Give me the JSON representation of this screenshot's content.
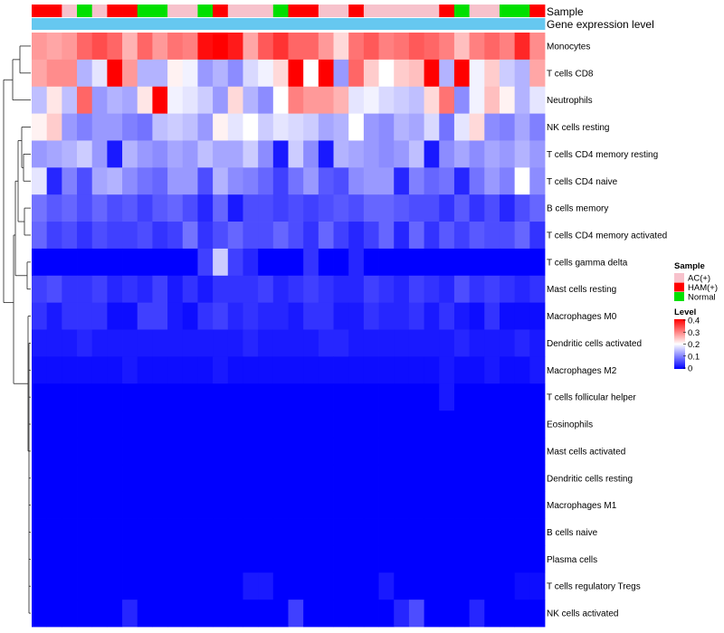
{
  "chart_data": {
    "type": "heatmap",
    "title": "",
    "annotation_labels": {
      "sample": "Sample",
      "gene_expression": "Gene expression level"
    },
    "rows": [
      "Monocytes",
      "T cells CD8",
      "Neutrophils",
      "NK cells resting",
      "T cells CD4 memory resting",
      "T cells CD4 naive",
      "B cells memory",
      "T cells CD4 memory activated",
      "T cells gamma delta",
      "Mast cells resting",
      "Macrophages M0",
      "Dendritic cells activated",
      "Macrophages M2",
      "T cells follicular helper",
      "Eosinophils",
      "Mast cells activated",
      "Dendritic cells resting",
      "Macrophages M1",
      "B cells naive",
      "Plasma cells",
      "T cells regulatory  Tregs",
      "NK cells activated"
    ],
    "samples": [
      "HAM(+)",
      "HAM(+)",
      "AC(+)",
      "Normal",
      "AC(+)",
      "HAM(+)",
      "HAM(+)",
      "Normal",
      "Normal",
      "AC(+)",
      "AC(+)",
      "Normal",
      "HAM(+)",
      "AC(+)",
      "AC(+)",
      "AC(+)",
      "Normal",
      "HAM(+)",
      "HAM(+)",
      "AC(+)",
      "AC(+)",
      "HAM(+)",
      "AC(+)",
      "AC(+)",
      "AC(+)",
      "AC(+)",
      "AC(+)",
      "HAM(+)",
      "Normal",
      "AC(+)",
      "AC(+)",
      "Normal",
      "Normal",
      "HAM(+)"
    ],
    "values": [
      [
        0.28,
        0.27,
        0.28,
        0.32,
        0.34,
        0.32,
        0.26,
        0.32,
        0.28,
        0.31,
        0.3,
        0.39,
        0.42,
        0.38,
        0.27,
        0.33,
        0.36,
        0.32,
        0.32,
        0.28,
        0.23,
        0.31,
        0.33,
        0.3,
        0.31,
        0.33,
        0.32,
        0.3,
        0.25,
        0.3,
        0.32,
        0.3,
        0.37,
        0.29
      ],
      [
        0.27,
        0.29,
        0.29,
        0.14,
        0.18,
        0.4,
        0.28,
        0.14,
        0.14,
        0.21,
        0.19,
        0.12,
        0.14,
        0.11,
        0.17,
        0.19,
        0.23,
        0.4,
        0.2,
        0.4,
        0.12,
        0.32,
        0.24,
        0.2,
        0.24,
        0.25,
        0.4,
        0.14,
        0.4,
        0.19,
        0.24,
        0.16,
        0.14,
        0.27
      ],
      [
        0.15,
        0.22,
        0.15,
        0.32,
        0.12,
        0.14,
        0.13,
        0.22,
        0.4,
        0.19,
        0.18,
        0.16,
        0.12,
        0.23,
        0.14,
        0.11,
        0.2,
        0.3,
        0.28,
        0.28,
        0.26,
        0.18,
        0.19,
        0.17,
        0.16,
        0.15,
        0.23,
        0.31,
        0.11,
        0.19,
        0.25,
        0.21,
        0.14,
        0.18
      ],
      [
        0.21,
        0.24,
        0.12,
        0.1,
        0.12,
        0.12,
        0.1,
        0.09,
        0.15,
        0.16,
        0.15,
        0.12,
        0.21,
        0.18,
        0.2,
        0.16,
        0.18,
        0.17,
        0.16,
        0.13,
        0.14,
        0.2,
        0.12,
        0.11,
        0.14,
        0.13,
        0.17,
        0.09,
        0.18,
        0.23,
        0.11,
        0.1,
        0.13,
        0.1
      ],
      [
        0.12,
        0.13,
        0.14,
        0.16,
        0.12,
        0.02,
        0.14,
        0.12,
        0.11,
        0.13,
        0.12,
        0.15,
        0.13,
        0.13,
        0.16,
        0.11,
        0.02,
        0.16,
        0.11,
        0.02,
        0.14,
        0.13,
        0.12,
        0.11,
        0.12,
        0.15,
        0.02,
        0.11,
        0.13,
        0.11,
        0.13,
        0.12,
        0.14,
        0.12
      ],
      [
        0.18,
        0.03,
        0.1,
        0.06,
        0.13,
        0.14,
        0.11,
        0.09,
        0.08,
        0.12,
        0.12,
        0.06,
        0.14,
        0.11,
        0.1,
        0.08,
        0.05,
        0.09,
        0.12,
        0.07,
        0.06,
        0.11,
        0.12,
        0.12,
        0.03,
        0.1,
        0.08,
        0.09,
        0.03,
        0.09,
        0.12,
        0.1,
        0.2,
        0.11
      ],
      [
        0.09,
        0.07,
        0.08,
        0.06,
        0.08,
        0.06,
        0.07,
        0.05,
        0.07,
        0.08,
        0.06,
        0.03,
        0.08,
        0.02,
        0.06,
        0.06,
        0.05,
        0.06,
        0.05,
        0.06,
        0.07,
        0.06,
        0.08,
        0.08,
        0.07,
        0.06,
        0.06,
        0.04,
        0.07,
        0.04,
        0.06,
        0.03,
        0.06,
        0.08
      ],
      [
        0.08,
        0.05,
        0.06,
        0.04,
        0.06,
        0.05,
        0.05,
        0.06,
        0.04,
        0.05,
        0.09,
        0.04,
        0.06,
        0.08,
        0.06,
        0.06,
        0.08,
        0.06,
        0.04,
        0.08,
        0.05,
        0.03,
        0.05,
        0.08,
        0.03,
        0.08,
        0.04,
        0.07,
        0.05,
        0.07,
        0.06,
        0.06,
        0.08,
        0.04
      ],
      [
        0.0,
        0.0,
        0.0,
        0.0,
        0.0,
        0.0,
        0.0,
        0.0,
        0.0,
        0.0,
        0.0,
        0.05,
        0.16,
        0.05,
        0.03,
        0.0,
        0.0,
        0.0,
        0.04,
        0.0,
        0.0,
        0.03,
        0.0,
        0.0,
        0.0,
        0.0,
        0.0,
        0.0,
        0.0,
        0.0,
        0.0,
        0.0,
        0.0,
        0.0
      ],
      [
        0.05,
        0.06,
        0.04,
        0.04,
        0.05,
        0.03,
        0.04,
        0.03,
        0.05,
        0.02,
        0.04,
        0.02,
        0.04,
        0.04,
        0.04,
        0.05,
        0.03,
        0.04,
        0.05,
        0.04,
        0.03,
        0.03,
        0.05,
        0.04,
        0.03,
        0.05,
        0.04,
        0.03,
        0.06,
        0.04,
        0.05,
        0.04,
        0.03,
        0.04
      ],
      [
        0.04,
        0.02,
        0.04,
        0.04,
        0.04,
        0.01,
        0.01,
        0.05,
        0.05,
        0.02,
        0.01,
        0.04,
        0.05,
        0.03,
        0.04,
        0.03,
        0.03,
        0.02,
        0.04,
        0.04,
        0.02,
        0.02,
        0.04,
        0.03,
        0.03,
        0.04,
        0.02,
        0.04,
        0.02,
        0.01,
        0.04,
        0.01,
        0.01,
        0.01
      ],
      [
        0.02,
        0.02,
        0.02,
        0.03,
        0.02,
        0.02,
        0.02,
        0.02,
        0.02,
        0.02,
        0.02,
        0.02,
        0.02,
        0.02,
        0.03,
        0.02,
        0.02,
        0.02,
        0.02,
        0.03,
        0.03,
        0.02,
        0.02,
        0.02,
        0.02,
        0.02,
        0.02,
        0.02,
        0.03,
        0.02,
        0.02,
        0.02,
        0.03,
        0.02
      ],
      [
        0.01,
        0.01,
        0.01,
        0.01,
        0.01,
        0.01,
        0.02,
        0.01,
        0.01,
        0.01,
        0.01,
        0.01,
        0.02,
        0.01,
        0.01,
        0.01,
        0.01,
        0.01,
        0.01,
        0.01,
        0.01,
        0.01,
        0.01,
        0.01,
        0.01,
        0.01,
        0.01,
        0.02,
        0.01,
        0.01,
        0.02,
        0.01,
        0.01,
        0.02
      ],
      [
        0.0,
        0.0,
        0.0,
        0.0,
        0.0,
        0.0,
        0.0,
        0.0,
        0.0,
        0.0,
        0.0,
        0.0,
        0.0,
        0.0,
        0.0,
        0.0,
        0.0,
        0.0,
        0.0,
        0.0,
        0.0,
        0.0,
        0.0,
        0.0,
        0.0,
        0.0,
        0.0,
        0.02,
        0.0,
        0.0,
        0.0,
        0.0,
        0.0,
        0.0
      ],
      [
        0.0,
        0.0,
        0.0,
        0.0,
        0.0,
        0.0,
        0.0,
        0.0,
        0.0,
        0.0,
        0.0,
        0.0,
        0.0,
        0.0,
        0.0,
        0.0,
        0.0,
        0.0,
        0.0,
        0.0,
        0.0,
        0.0,
        0.0,
        0.0,
        0.0,
        0.0,
        0.0,
        0.0,
        0.0,
        0.0,
        0.0,
        0.0,
        0.0,
        0.0
      ],
      [
        0.0,
        0.0,
        0.0,
        0.0,
        0.0,
        0.0,
        0.0,
        0.0,
        0.0,
        0.0,
        0.0,
        0.0,
        0.0,
        0.0,
        0.0,
        0.0,
        0.0,
        0.0,
        0.0,
        0.0,
        0.0,
        0.0,
        0.0,
        0.0,
        0.0,
        0.0,
        0.0,
        0.0,
        0.0,
        0.0,
        0.0,
        0.0,
        0.0,
        0.0
      ],
      [
        0.0,
        0.0,
        0.0,
        0.0,
        0.0,
        0.0,
        0.0,
        0.0,
        0.0,
        0.0,
        0.0,
        0.0,
        0.0,
        0.0,
        0.0,
        0.0,
        0.0,
        0.0,
        0.0,
        0.0,
        0.0,
        0.0,
        0.0,
        0.0,
        0.0,
        0.0,
        0.0,
        0.0,
        0.0,
        0.0,
        0.0,
        0.0,
        0.0,
        0.0
      ],
      [
        0.0,
        0.0,
        0.0,
        0.0,
        0.0,
        0.0,
        0.0,
        0.0,
        0.0,
        0.0,
        0.0,
        0.0,
        0.0,
        0.0,
        0.0,
        0.0,
        0.0,
        0.0,
        0.0,
        0.0,
        0.0,
        0.0,
        0.0,
        0.0,
        0.0,
        0.0,
        0.0,
        0.0,
        0.0,
        0.0,
        0.0,
        0.0,
        0.0,
        0.0
      ],
      [
        0.0,
        0.0,
        0.0,
        0.0,
        0.0,
        0.0,
        0.0,
        0.0,
        0.0,
        0.0,
        0.0,
        0.0,
        0.0,
        0.0,
        0.0,
        0.0,
        0.0,
        0.0,
        0.0,
        0.0,
        0.0,
        0.0,
        0.0,
        0.0,
        0.0,
        0.0,
        0.0,
        0.0,
        0.0,
        0.0,
        0.0,
        0.0,
        0.0,
        0.0
      ],
      [
        0.0,
        0.0,
        0.0,
        0.0,
        0.0,
        0.0,
        0.0,
        0.0,
        0.0,
        0.0,
        0.0,
        0.0,
        0.0,
        0.0,
        0.0,
        0.0,
        0.0,
        0.0,
        0.0,
        0.0,
        0.0,
        0.0,
        0.0,
        0.0,
        0.0,
        0.0,
        0.0,
        0.0,
        0.0,
        0.0,
        0.0,
        0.0,
        0.0,
        0.0
      ],
      [
        0.0,
        0.0,
        0.0,
        0.0,
        0.0,
        0.0,
        0.0,
        0.0,
        0.0,
        0.0,
        0.0,
        0.0,
        0.0,
        0.0,
        0.02,
        0.02,
        0.0,
        0.0,
        0.0,
        0.0,
        0.0,
        0.0,
        0.0,
        0.02,
        0.0,
        0.0,
        0.0,
        0.0,
        0.0,
        0.0,
        0.0,
        0.0,
        0.01,
        0.01
      ],
      [
        0.0,
        0.0,
        0.0,
        0.0,
        0.0,
        0.0,
        0.03,
        0.0,
        0.0,
        0.0,
        0.0,
        0.0,
        0.0,
        0.0,
        0.0,
        0.0,
        0.0,
        0.05,
        0.0,
        0.0,
        0.0,
        0.0,
        0.0,
        0.0,
        0.03,
        0.06,
        0.0,
        0.0,
        0.0,
        0.03,
        0.0,
        0.0,
        0.0,
        0.0
      ]
    ],
    "sample_legend": {
      "title": "Sample",
      "items": [
        {
          "label": "AC(+)",
          "color": "#f7c2cc"
        },
        {
          "label": "HAM(+)",
          "color": "#ff0000"
        },
        {
          "label": "Normal",
          "color": "#00e000"
        }
      ]
    },
    "level_legend": {
      "title": "Level",
      "ticks": [
        "0.4",
        "0.3",
        "0.2",
        "0.1",
        "0"
      ],
      "min": 0,
      "max": 0.4
    },
    "gene_expression_color": "#66c8f0",
    "color_low": "#0000ff",
    "color_mid": "#ffffff",
    "color_high": "#ff0000",
    "row_dendrogram": true
  }
}
